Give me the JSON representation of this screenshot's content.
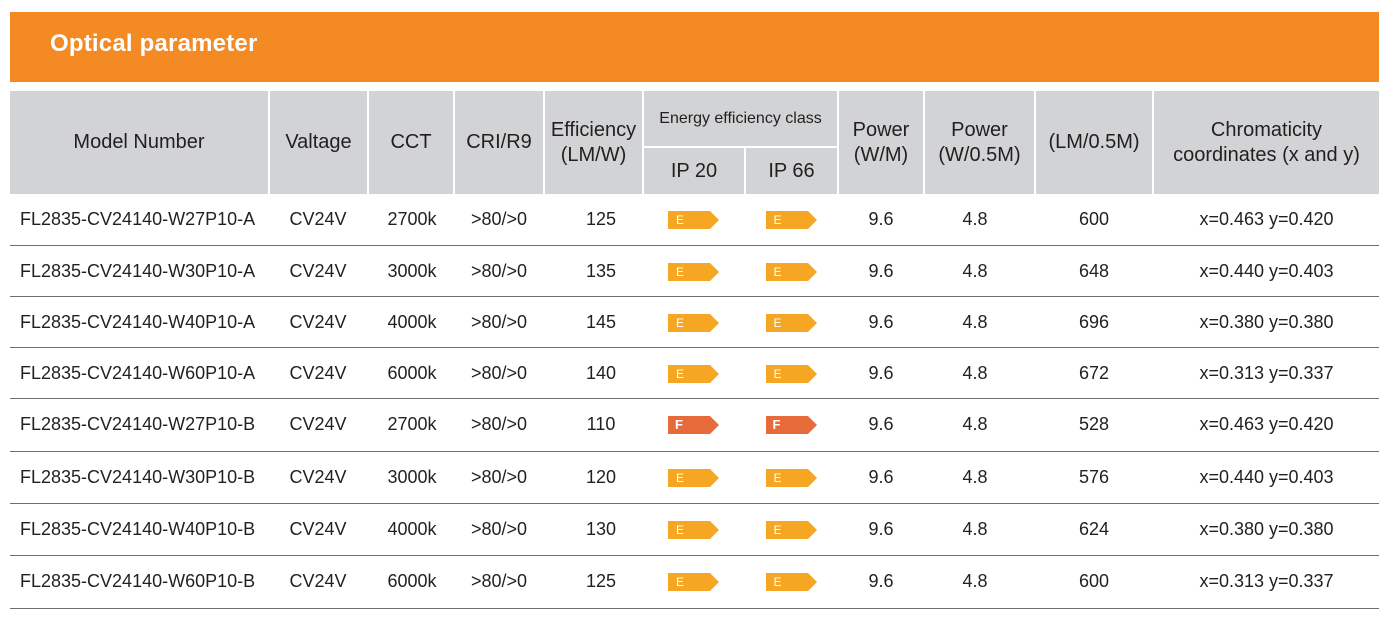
{
  "section": {
    "title": "Optical parameter"
  },
  "colors": {
    "accent": "#f38a24",
    "header_bg": "#d1d3d4",
    "class_E": "#f5a623",
    "class_F": "#e66a3a"
  },
  "headers": {
    "model": "Model Number",
    "voltage": "Valtage",
    "cct": "CCT",
    "cri": "CRI/R9",
    "efficiency_l1": "Efficiency",
    "efficiency_l2": "(LM/W)",
    "energy_class": "Energy efficiency class",
    "ip20": "IP 20",
    "ip66": "IP 66",
    "power_m_l1": "Power",
    "power_m_l2": "(W/M)",
    "power_half_l1": "Power",
    "power_half_l2": "(W/0.5M)",
    "lumen": "(LM/0.5M)",
    "chroma_l1": "Chromaticity",
    "chroma_l2": "coordinates (x and y)"
  },
  "rows": [
    {
      "model": "FL2835-CV24140-W27P10-A",
      "voltage": "CV24V",
      "cct": "2700k",
      "cri": ">80/>0",
      "efficiency": "125",
      "ip20": "E",
      "ip66": "E",
      "power_m": "9.6",
      "power_half": "4.8",
      "lumen": "600",
      "chroma": "x=0.463 y=0.420"
    },
    {
      "model": "FL2835-CV24140-W30P10-A",
      "voltage": "CV24V",
      "cct": "3000k",
      "cri": ">80/>0",
      "efficiency": "135",
      "ip20": "E",
      "ip66": "E",
      "power_m": "9.6",
      "power_half": "4.8",
      "lumen": "648",
      "chroma": "x=0.440 y=0.403"
    },
    {
      "model": "FL2835-CV24140-W40P10-A",
      "voltage": "CV24V",
      "cct": "4000k",
      "cri": ">80/>0",
      "efficiency": "145",
      "ip20": "E",
      "ip66": "E",
      "power_m": "9.6",
      "power_half": "4.8",
      "lumen": "696",
      "chroma": "x=0.380 y=0.380"
    },
    {
      "model": "FL2835-CV24140-W60P10-A",
      "voltage": "CV24V",
      "cct": "6000k",
      "cri": ">80/>0",
      "efficiency": "140",
      "ip20": "E",
      "ip66": "E",
      "power_m": "9.6",
      "power_half": "4.8",
      "lumen": "672",
      "chroma": "x=0.313 y=0.337"
    },
    {
      "model": "FL2835-CV24140-W27P10-B",
      "voltage": "CV24V",
      "cct": "2700k",
      "cri": ">80/>0",
      "efficiency": "110",
      "ip20": "F",
      "ip66": "F",
      "power_m": "9.6",
      "power_half": "4.8",
      "lumen": "528",
      "chroma": "x=0.463 y=0.420"
    },
    {
      "model": "FL2835-CV24140-W30P10-B",
      "voltage": "CV24V",
      "cct": "3000k",
      "cri": ">80/>0",
      "efficiency": "120",
      "ip20": "E",
      "ip66": "E",
      "power_m": "9.6",
      "power_half": "4.8",
      "lumen": "576",
      "chroma": "x=0.440 y=0.403"
    },
    {
      "model": "FL2835-CV24140-W40P10-B",
      "voltage": "CV24V",
      "cct": "4000k",
      "cri": ">80/>0",
      "efficiency": "130",
      "ip20": "E",
      "ip66": "E",
      "power_m": "9.6",
      "power_half": "4.8",
      "lumen": "624",
      "chroma": "x=0.380 y=0.380"
    },
    {
      "model": "FL2835-CV24140-W60P10-B",
      "voltage": "CV24V",
      "cct": "6000k",
      "cri": ">80/>0",
      "efficiency": "125",
      "ip20": "E",
      "ip66": "E",
      "power_m": "9.6",
      "power_half": "4.8",
      "lumen": "600",
      "chroma": "x=0.313 y=0.337"
    }
  ]
}
